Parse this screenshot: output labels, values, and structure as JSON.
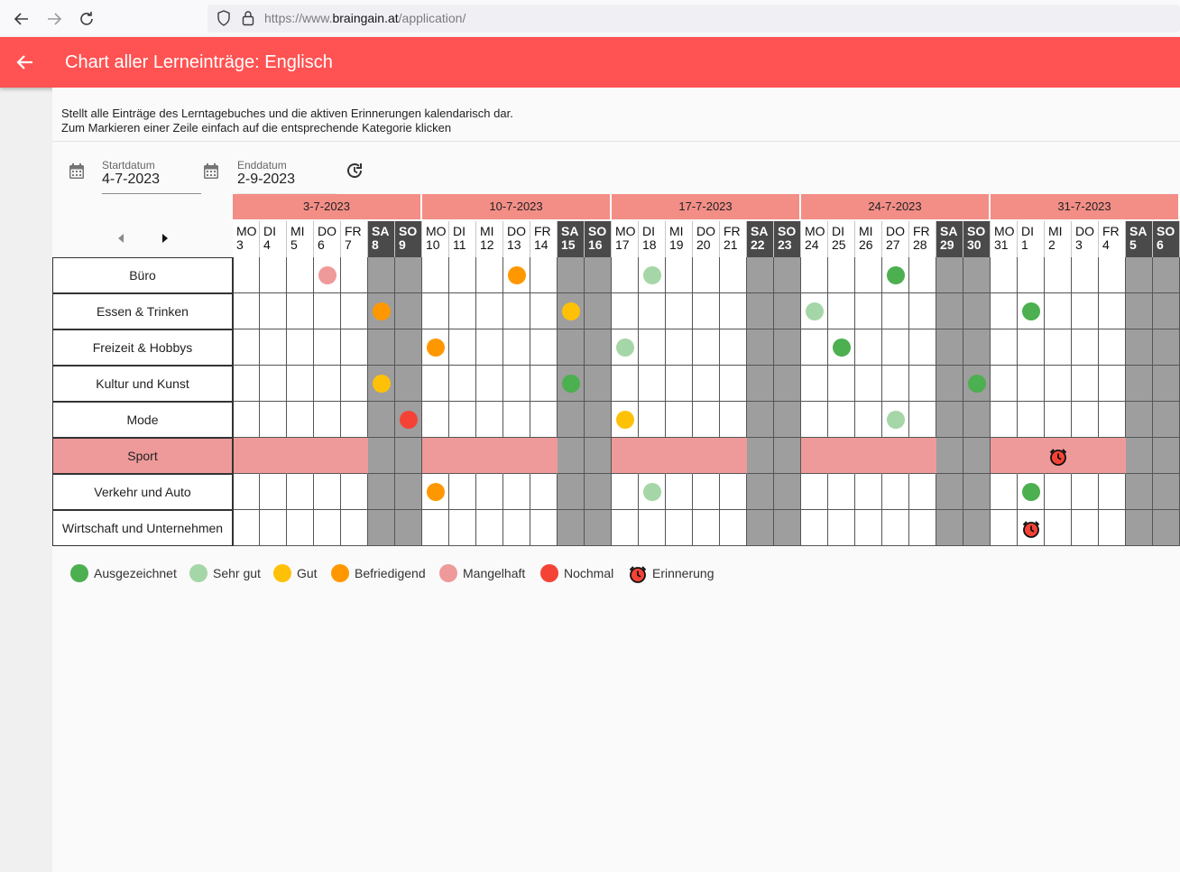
{
  "browser": {
    "url_prefix": "https://www.",
    "url_domain": "braingain.at",
    "url_path": "/application/"
  },
  "appbar": {
    "title": "Chart aller Lerneinträge:  Englisch"
  },
  "description": {
    "line1": "Stellt alle Einträge des Lerntagebuches und die aktiven Erinnerungen kalendarisch dar.",
    "line2": "Zum Markieren einer Zeile einfach auf die entsprechende Kategorie klicken"
  },
  "start": {
    "label": "Startdatum",
    "value": "4-7-2023"
  },
  "end": {
    "label": "Enddatum",
    "value": "2-9-2023"
  },
  "weeks": [
    "3-7-2023",
    "10-7-2023",
    "17-7-2023",
    "24-7-2023",
    "31-7-2023"
  ],
  "days": [
    {
      "d": "MO",
      "n": "3"
    },
    {
      "d": "DI",
      "n": "4"
    },
    {
      "d": "MI",
      "n": "5"
    },
    {
      "d": "DO",
      "n": "6"
    },
    {
      "d": "FR",
      "n": "7"
    },
    {
      "d": "SA",
      "n": "8"
    },
    {
      "d": "SO",
      "n": "9"
    },
    {
      "d": "MO",
      "n": "10"
    },
    {
      "d": "DI",
      "n": "11"
    },
    {
      "d": "MI",
      "n": "12"
    },
    {
      "d": "DO",
      "n": "13"
    },
    {
      "d": "FR",
      "n": "14"
    },
    {
      "d": "SA",
      "n": "15"
    },
    {
      "d": "SO",
      "n": "16"
    },
    {
      "d": "MO",
      "n": "17"
    },
    {
      "d": "DI",
      "n": "18"
    },
    {
      "d": "MI",
      "n": "19"
    },
    {
      "d": "DO",
      "n": "20"
    },
    {
      "d": "FR",
      "n": "21"
    },
    {
      "d": "SA",
      "n": "22"
    },
    {
      "d": "SO",
      "n": "23"
    },
    {
      "d": "MO",
      "n": "24"
    },
    {
      "d": "DI",
      "n": "25"
    },
    {
      "d": "MI",
      "n": "26"
    },
    {
      "d": "DO",
      "n": "27"
    },
    {
      "d": "FR",
      "n": "28"
    },
    {
      "d": "SA",
      "n": "29"
    },
    {
      "d": "SO",
      "n": "30"
    },
    {
      "d": "MO",
      "n": "31"
    },
    {
      "d": "DI",
      "n": "1"
    },
    {
      "d": "MI",
      "n": "2"
    },
    {
      "d": "DO",
      "n": "3"
    },
    {
      "d": "FR",
      "n": "4"
    },
    {
      "d": "SA",
      "n": "5"
    },
    {
      "d": "SO",
      "n": "6"
    }
  ],
  "categories": [
    "Büro",
    "Essen & Trinken",
    "Freizeit & Hobbys",
    "Kultur und Kunst",
    "Mode",
    "Sport",
    "Verkehr und Auto",
    "Wirtschaft und Unternehmen"
  ],
  "selected_category": 5,
  "ratings": {
    "Ausgezeichnet": "#4caf50",
    "Sehr gut": "#a5d6a7",
    "Gut": "#ffc107",
    "Befriedigend": "#ff9800",
    "Mangelhaft": "#ef9a9a",
    "Nochmal": "#f44336"
  },
  "entries": [
    {
      "row": 0,
      "day": 3,
      "rating": "Mangelhaft"
    },
    {
      "row": 0,
      "day": 10,
      "rating": "Befriedigend"
    },
    {
      "row": 0,
      "day": 15,
      "rating": "Sehr gut"
    },
    {
      "row": 0,
      "day": 24,
      "rating": "Ausgezeichnet"
    },
    {
      "row": 1,
      "day": 5,
      "rating": "Befriedigend"
    },
    {
      "row": 1,
      "day": 12,
      "rating": "Gut"
    },
    {
      "row": 1,
      "day": 21,
      "rating": "Sehr gut"
    },
    {
      "row": 1,
      "day": 29,
      "rating": "Ausgezeichnet"
    },
    {
      "row": 2,
      "day": 7,
      "rating": "Befriedigend"
    },
    {
      "row": 2,
      "day": 14,
      "rating": "Sehr gut"
    },
    {
      "row": 2,
      "day": 22,
      "rating": "Ausgezeichnet"
    },
    {
      "row": 3,
      "day": 5,
      "rating": "Gut"
    },
    {
      "row": 3,
      "day": 12,
      "rating": "Ausgezeichnet"
    },
    {
      "row": 3,
      "day": 27,
      "rating": "Ausgezeichnet"
    },
    {
      "row": 4,
      "day": 6,
      "rating": "Nochmal"
    },
    {
      "row": 4,
      "day": 14,
      "rating": "Gut"
    },
    {
      "row": 4,
      "day": 24,
      "rating": "Sehr gut"
    },
    {
      "row": 6,
      "day": 7,
      "rating": "Befriedigend"
    },
    {
      "row": 6,
      "day": 15,
      "rating": "Sehr gut"
    },
    {
      "row": 6,
      "day": 29,
      "rating": "Ausgezeichnet"
    }
  ],
  "reminders": [
    {
      "row": 5,
      "day": 30
    },
    {
      "row": 7,
      "day": 29
    }
  ],
  "legend": [
    {
      "label": "Ausgezeichnet",
      "type": "dot"
    },
    {
      "label": "Sehr gut",
      "type": "dot"
    },
    {
      "label": "Gut",
      "type": "dot"
    },
    {
      "label": "Befriedigend",
      "type": "dot"
    },
    {
      "label": "Mangelhaft",
      "type": "dot"
    },
    {
      "label": "Nochmal",
      "type": "dot"
    },
    {
      "label": "Erinnerung",
      "type": "alarm"
    }
  ]
}
